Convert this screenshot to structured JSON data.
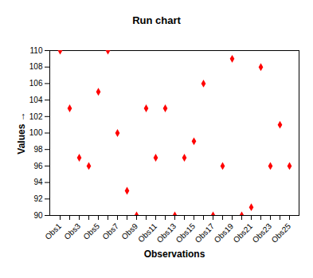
{
  "chart_data": {
    "type": "scatter",
    "title": "Run chart",
    "x_label": "Observations",
    "y_label": "Values",
    "categories": [
      "Obs1",
      null,
      "Obs3",
      null,
      "Obs5",
      null,
      "Obs7",
      null,
      "Obs9",
      null,
      "Obs11",
      null,
      "Obs13",
      null,
      "Obs15",
      null,
      "Obs17",
      null,
      "Obs19",
      null,
      "Obs21",
      null,
      "Obs23",
      null,
      "Obs25"
    ],
    "values": [
      110,
      103,
      97,
      96,
      105,
      110,
      100,
      93,
      90,
      103,
      97,
      103,
      90,
      97,
      99,
      106,
      90,
      96,
      109,
      90,
      91,
      108,
      96,
      101,
      96
    ],
    "color": "#ff0000",
    "marker": "diamond",
    "ylim": [
      90,
      110
    ],
    "yticks": [
      90,
      92,
      94,
      96,
      98,
      100,
      102,
      104,
      106,
      108,
      110
    ],
    "grid": false
  }
}
